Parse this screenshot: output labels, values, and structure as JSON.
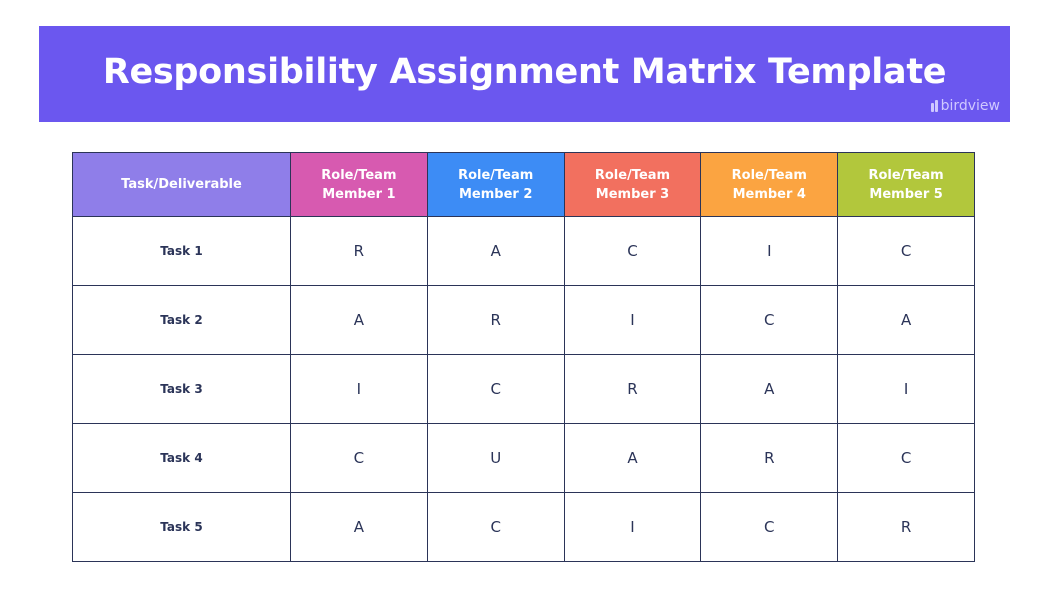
{
  "banner": {
    "title": "Responsibility Assignment Matrix Template",
    "brand": "birdview"
  },
  "colors": {
    "banner": "#6b57ef",
    "task_header": "#8f7ee9",
    "member_1": "#d75ab0",
    "member_2": "#3d8cf5",
    "member_3": "#f2705f",
    "member_4": "#fba441",
    "member_5": "#b2c73c",
    "grid_text": "#2b3458"
  },
  "table": {
    "headers": [
      "Task/Deliverable",
      "Role/Team Member 1",
      "Role/Team Member 2",
      "Role/Team Member 3",
      "Role/Team Member 4",
      "Role/Team Member 5"
    ],
    "rows": [
      {
        "task": "Task 1",
        "cells": [
          "R",
          "A",
          "C",
          "I",
          "C"
        ]
      },
      {
        "task": "Task 2",
        "cells": [
          "A",
          "R",
          "I",
          "C",
          "A"
        ]
      },
      {
        "task": "Task 3",
        "cells": [
          "I",
          "C",
          "R",
          "A",
          "I"
        ]
      },
      {
        "task": "Task 4",
        "cells": [
          "C",
          "U",
          "A",
          "R",
          "C"
        ]
      },
      {
        "task": "Task 5",
        "cells": [
          "A",
          "C",
          "I",
          "C",
          "R"
        ]
      }
    ]
  }
}
